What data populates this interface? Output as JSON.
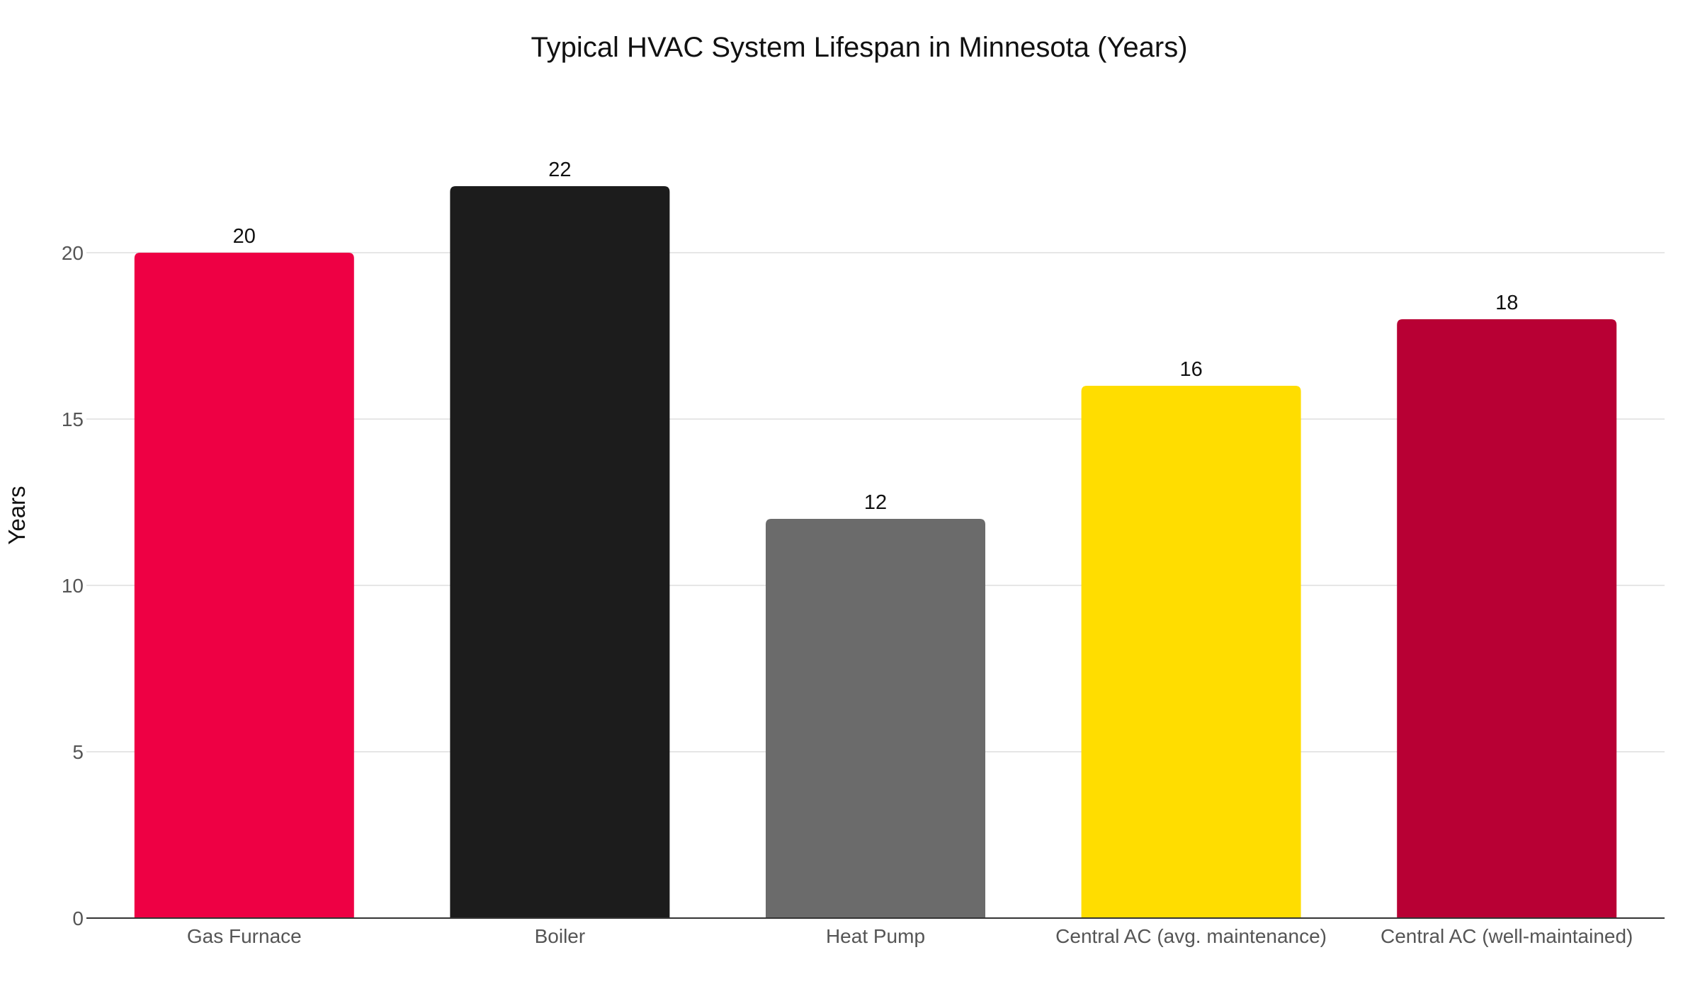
{
  "chart_data": {
    "type": "bar",
    "title": "Typical HVAC System Lifespan in Minnesota (Years)",
    "xlabel": "",
    "ylabel": "Years",
    "categories": [
      "Gas Furnace",
      "Boiler",
      "Heat Pump",
      "Central AC (avg. maintenance)",
      "Central AC (well-maintained)"
    ],
    "values": [
      20,
      22,
      12,
      16,
      18
    ],
    "data_labels": [
      "20",
      "22",
      "12",
      "16",
      "18"
    ],
    "colors": [
      "#ee0044",
      "#1c1c1c",
      "#6b6b6b",
      "#ffdd00",
      "#b80034"
    ],
    "ylim": [
      0,
      23
    ],
    "yticks": [
      0,
      5,
      10,
      15,
      20
    ],
    "ytick_labels": [
      "0",
      "5",
      "10",
      "15",
      "20"
    ],
    "grid": true,
    "legend": "none"
  }
}
